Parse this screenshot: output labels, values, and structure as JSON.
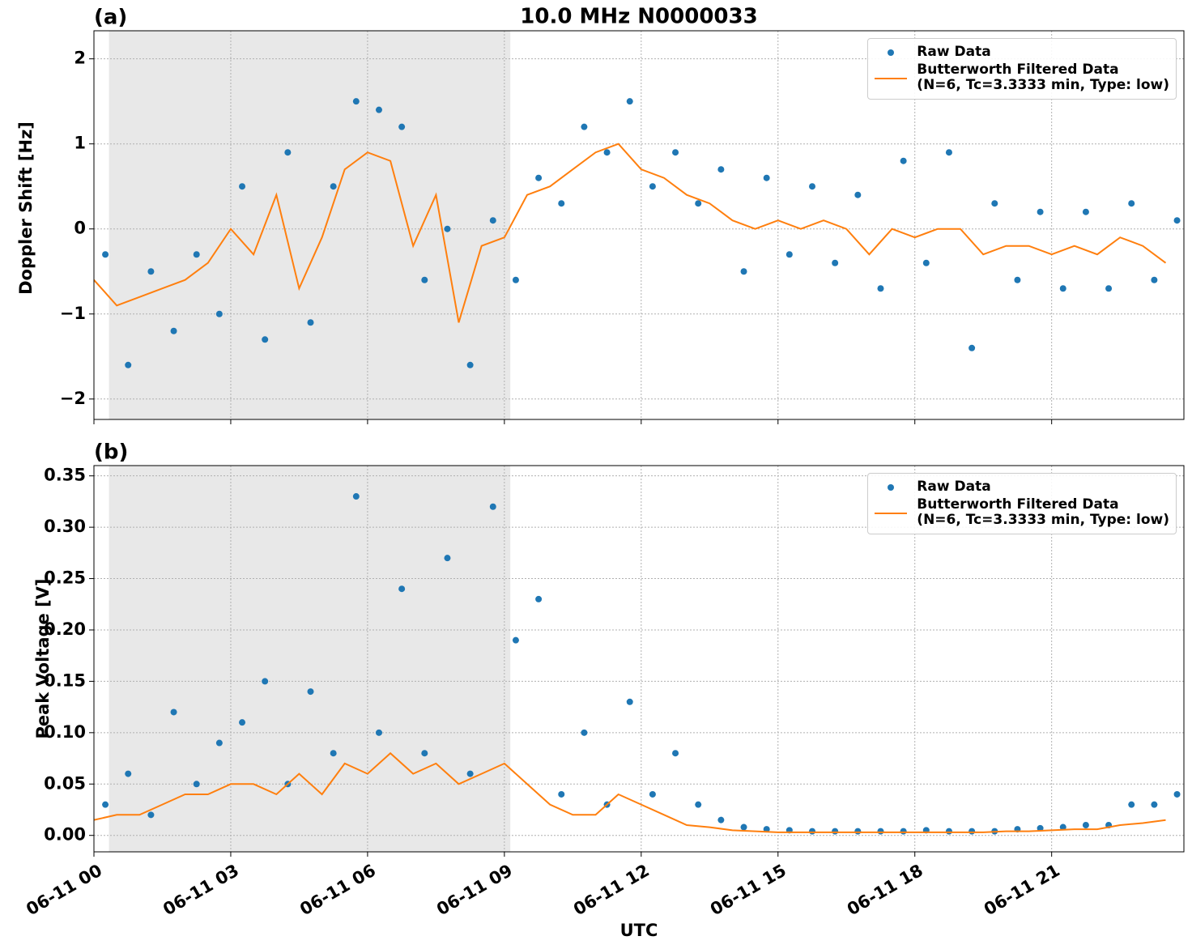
{
  "chart_data": [
    {
      "type": "scatter-line",
      "panel_label": "(a)",
      "title": "10.0 MHz N0000033",
      "y_label": "Doppler Shift [Hz]",
      "xlim": [
        0,
        23.9
      ],
      "xticks": [
        0,
        3,
        6,
        9,
        12,
        15,
        18,
        21
      ],
      "ylim": [
        -2.24,
        2.33
      ],
      "yticks": [
        {
          "value": -2,
          "label": "−2"
        },
        {
          "value": -1,
          "label": "−1"
        },
        0,
        1,
        2
      ],
      "grid": true,
      "shaded_span": [
        0.33,
        9.13
      ],
      "legend": "upper right",
      "series": [
        {
          "name": "Raw Data",
          "kind": "points",
          "color": "#1f77b4",
          "x": [
            0.25,
            0.75,
            1.25,
            1.75,
            2.25,
            2.75,
            3.25,
            3.75,
            4.25,
            4.75,
            5.25,
            5.75,
            6.25,
            6.75,
            7.25,
            7.75,
            8.25,
            8.75,
            9.25,
            9.75,
            10.25,
            10.75,
            11.25,
            11.75,
            12.25,
            12.75,
            13.25,
            13.75,
            14.25,
            14.75,
            15.25,
            15.75,
            16.25,
            16.75,
            17.25,
            17.75,
            18.25,
            18.75,
            19.25,
            19.75,
            20.25,
            20.75,
            21.25,
            21.75,
            22.25,
            22.75,
            23.25,
            23.75
          ],
          "values": [
            -0.3,
            -1.6,
            -0.5,
            -1.2,
            -0.3,
            -1.0,
            0.5,
            -1.3,
            0.9,
            -1.1,
            0.5,
            1.5,
            1.4,
            1.2,
            -0.6,
            0.0,
            -1.6,
            0.1,
            -0.6,
            0.6,
            0.3,
            1.2,
            0.9,
            1.5,
            0.5,
            0.9,
            0.3,
            0.7,
            -0.5,
            0.6,
            -0.3,
            0.5,
            -0.4,
            0.4,
            -0.7,
            0.8,
            -0.4,
            0.9,
            -1.4,
            0.3,
            -0.6,
            0.2,
            -0.7,
            0.2,
            -0.7,
            0.3,
            -0.6,
            0.1
          ]
        },
        {
          "name": "Butterworth Filtered Data\n(N=6, Tc=3.3333 min, Type: low)",
          "kind": "line",
          "color": "#ff7f0e",
          "x": [
            0,
            0.5,
            1,
            1.5,
            2,
            2.5,
            3,
            3.5,
            4,
            4.5,
            5,
            5.5,
            6,
            6.5,
            7,
            7.5,
            8,
            8.5,
            9,
            9.5,
            10,
            10.5,
            11,
            11.5,
            12,
            12.5,
            13,
            13.5,
            14,
            14.5,
            15,
            15.5,
            16,
            16.5,
            17,
            17.5,
            18,
            18.5,
            19,
            19.5,
            20,
            20.5,
            21,
            21.5,
            22,
            22.5,
            23,
            23.5
          ],
          "values": [
            -0.6,
            -0.9,
            -0.8,
            -0.7,
            -0.6,
            -0.4,
            0.0,
            -0.3,
            0.4,
            -0.7,
            -0.1,
            0.7,
            0.9,
            0.8,
            -0.2,
            0.4,
            -1.1,
            -0.2,
            -0.1,
            0.4,
            0.5,
            0.7,
            0.9,
            1.0,
            0.7,
            0.6,
            0.4,
            0.3,
            0.1,
            0.0,
            0.1,
            0.0,
            0.1,
            0.0,
            -0.3,
            0.0,
            -0.1,
            0.0,
            0.0,
            -0.3,
            -0.2,
            -0.2,
            -0.3,
            -0.2,
            -0.3,
            -0.1,
            -0.2,
            -0.4
          ]
        }
      ]
    },
    {
      "type": "scatter-line",
      "panel_label": "(b)",
      "y_label": "Peak Voltage [V]",
      "x_label": "UTC",
      "xlim": [
        0,
        23.9
      ],
      "xticks": [
        {
          "value": 0,
          "label": "06-11 00"
        },
        {
          "value": 3,
          "label": "06-11 03"
        },
        {
          "value": 6,
          "label": "06-11 06"
        },
        {
          "value": 9,
          "label": "06-11 09"
        },
        {
          "value": 12,
          "label": "06-11 12"
        },
        {
          "value": 15,
          "label": "06-11 15"
        },
        {
          "value": 18,
          "label": "06-11 18"
        },
        {
          "value": 21,
          "label": "06-11 21"
        }
      ],
      "ylim": [
        -0.016,
        0.36
      ],
      "yticks": [
        {
          "value": 0,
          "label": "0.00"
        },
        {
          "value": 0.05,
          "label": "0.05"
        },
        {
          "value": 0.1,
          "label": "0.10"
        },
        {
          "value": 0.15,
          "label": "0.15"
        },
        {
          "value": 0.2,
          "label": "0.20"
        },
        {
          "value": 0.25,
          "label": "0.25"
        },
        {
          "value": 0.3,
          "label": "0.30"
        },
        {
          "value": 0.35,
          "label": "0.35"
        }
      ],
      "grid": true,
      "shaded_span": [
        0.33,
        9.13
      ],
      "legend": "upper right",
      "series": [
        {
          "name": "Raw Data",
          "kind": "points",
          "color": "#1f77b4",
          "x": [
            0.25,
            0.75,
            1.25,
            1.75,
            2.25,
            2.75,
            3.25,
            3.75,
            4.25,
            4.75,
            5.25,
            5.75,
            6.25,
            6.75,
            7.25,
            7.75,
            8.25,
            8.75,
            9.25,
            9.75,
            10.25,
            10.75,
            11.25,
            11.75,
            12.25,
            12.75,
            13.25,
            13.75,
            14.25,
            14.75,
            15.25,
            15.75,
            16.25,
            16.75,
            17.25,
            17.75,
            18.25,
            18.75,
            19.25,
            19.75,
            20.25,
            20.75,
            21.25,
            21.75,
            22.25,
            22.75,
            23.25,
            23.75
          ],
          "values": [
            0.03,
            0.06,
            0.02,
            0.12,
            0.05,
            0.09,
            0.11,
            0.15,
            0.05,
            0.14,
            0.08,
            0.33,
            0.1,
            0.24,
            0.08,
            0.27,
            0.06,
            0.32,
            0.19,
            0.23,
            0.04,
            0.1,
            0.03,
            0.13,
            0.04,
            0.08,
            0.03,
            0.015,
            0.008,
            0.006,
            0.005,
            0.004,
            0.004,
            0.004,
            0.004,
            0.004,
            0.005,
            0.004,
            0.004,
            0.004,
            0.006,
            0.007,
            0.008,
            0.01,
            0.01,
            0.03,
            0.03,
            0.04
          ]
        },
        {
          "name": "Butterworth Filtered Data\n(N=6, Tc=3.3333 min, Type: low)",
          "kind": "line",
          "color": "#ff7f0e",
          "x": [
            0,
            0.5,
            1,
            1.5,
            2,
            2.5,
            3,
            3.5,
            4,
            4.5,
            5,
            5.5,
            6,
            6.5,
            7,
            7.5,
            8,
            8.5,
            9,
            9.5,
            10,
            10.5,
            11,
            11.5,
            12,
            12.5,
            13,
            13.5,
            14,
            14.5,
            15,
            15.5,
            16,
            16.5,
            17,
            17.5,
            18,
            18.5,
            19,
            19.5,
            20,
            20.5,
            21,
            21.5,
            22,
            22.5,
            23,
            23.5
          ],
          "values": [
            0.015,
            0.02,
            0.02,
            0.03,
            0.04,
            0.04,
            0.05,
            0.05,
            0.04,
            0.06,
            0.04,
            0.07,
            0.06,
            0.08,
            0.06,
            0.07,
            0.05,
            0.06,
            0.07,
            0.05,
            0.03,
            0.02,
            0.02,
            0.04,
            0.03,
            0.02,
            0.01,
            0.008,
            0.005,
            0.004,
            0.003,
            0.003,
            0.003,
            0.003,
            0.003,
            0.003,
            0.003,
            0.003,
            0.003,
            0.003,
            0.004,
            0.004,
            0.005,
            0.006,
            0.006,
            0.01,
            0.012,
            0.015
          ]
        }
      ]
    }
  ]
}
